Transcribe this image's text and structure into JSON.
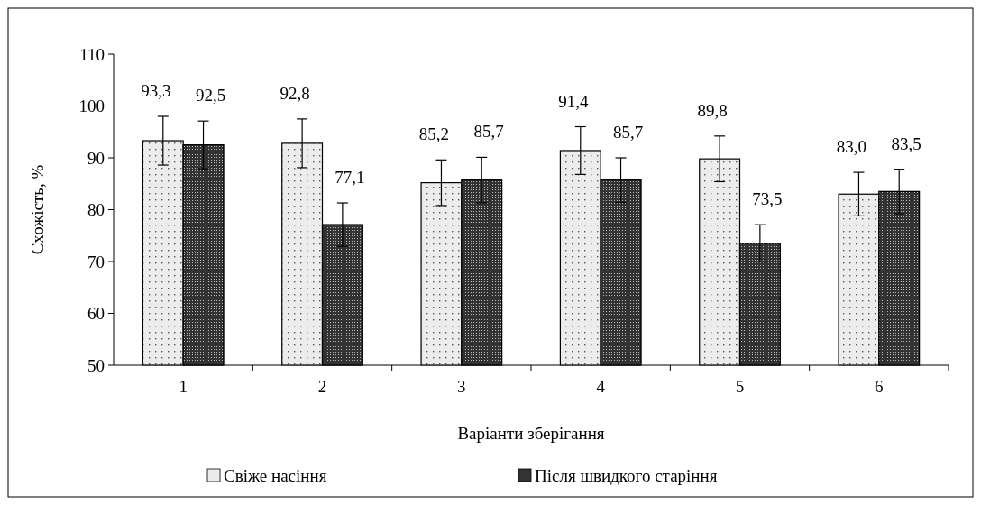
{
  "chart_data": {
    "type": "bar",
    "xlabel": "Варіанти зберігання",
    "ylabel": "Схожість, %",
    "categories": [
      "1",
      "2",
      "3",
      "4",
      "5",
      "6"
    ],
    "series": [
      {
        "name": "Свіже насіння",
        "color": "#ececec",
        "values": [
          93.3,
          92.8,
          85.2,
          91.4,
          89.8,
          83.0
        ],
        "value_labels": [
          "93,3",
          "92,8",
          "85,2",
          "91,4",
          "89,8",
          "83,0"
        ],
        "errors": [
          4.7,
          4.7,
          4.4,
          4.6,
          4.4,
          4.2
        ]
      },
      {
        "name": "Після швидкого старіння",
        "color": "#333333",
        "values": [
          92.5,
          77.1,
          85.7,
          85.7,
          73.5,
          83.5
        ],
        "value_labels": [
          "92,5",
          "77,1",
          "85,7",
          "85,7",
          "73,5",
          "83,5"
        ],
        "errors": [
          4.6,
          4.2,
          4.4,
          4.3,
          3.6,
          4.3
        ]
      }
    ],
    "ylim": [
      50,
      110
    ],
    "yticks": [
      50,
      60,
      70,
      80,
      90,
      100,
      110
    ],
    "legend": "bottom",
    "grid": false
  }
}
